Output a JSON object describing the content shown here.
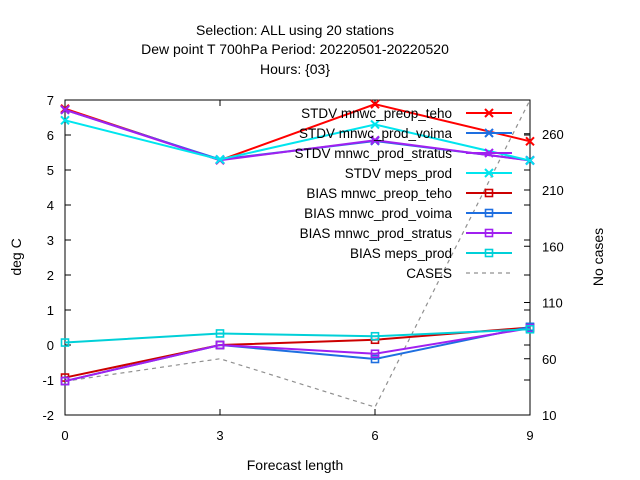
{
  "header": {
    "line1": "Selection: ALL using    20 stations",
    "line2": "Dew point T 700hPa   Period: 20220501-20220520",
    "line3": "Hours: {03}"
  },
  "chart_data": {
    "type": "line",
    "xlabel": "Forecast length",
    "ylabel": "deg C",
    "y2label": "No cases",
    "x": [
      0,
      3,
      6,
      9
    ],
    "xticks": [
      "0",
      "3",
      "6",
      "9"
    ],
    "xlim": [
      0,
      9
    ],
    "ylim": [
      -2,
      7
    ],
    "yticks": [
      "-2",
      "-1",
      "0",
      "1",
      "2",
      "3",
      "4",
      "5",
      "6",
      "7"
    ],
    "y2lim": [
      10,
      290
    ],
    "y2ticks": [
      "10",
      "60",
      "110",
      "160",
      "210",
      "260"
    ],
    "grid": false,
    "legend_position": "top-right",
    "series": [
      {
        "name": "STDV mnwc_preop_teho",
        "axis": "y",
        "color": "#ff0000",
        "marker": "x",
        "values": [
          6.75,
          5.28,
          6.88,
          5.82
        ]
      },
      {
        "name": "STDV mnwc_prod_voima",
        "axis": "y",
        "color": "#1e6fe0",
        "marker": "x",
        "values": [
          6.72,
          5.3,
          5.83,
          5.28
        ]
      },
      {
        "name": "STDV mnwc_prod_stratus",
        "axis": "y",
        "color": "#a020f0",
        "marker": "x",
        "values": [
          6.72,
          5.28,
          5.85,
          5.27
        ]
      },
      {
        "name": "STDV meps_prod",
        "axis": "y",
        "color": "#00e5ee",
        "marker": "x",
        "values": [
          6.42,
          5.3,
          6.3,
          5.27
        ]
      },
      {
        "name": "BIAS mnwc_preop_teho",
        "axis": "y",
        "color": "#cc0000",
        "marker": "square",
        "values": [
          -0.93,
          0.0,
          0.15,
          0.5
        ]
      },
      {
        "name": "BIAS mnwc_prod_voima",
        "axis": "y",
        "color": "#1e6fe0",
        "marker": "square",
        "values": [
          -1.03,
          0.0,
          -0.4,
          0.52
        ]
      },
      {
        "name": "BIAS mnwc_prod_stratus",
        "axis": "y",
        "color": "#a020f0",
        "marker": "square",
        "values": [
          -1.03,
          0.0,
          -0.25,
          0.48
        ]
      },
      {
        "name": "BIAS meps_prod",
        "axis": "y",
        "color": "#00d0d8",
        "marker": "square",
        "values": [
          0.07,
          0.33,
          0.25,
          0.45
        ]
      },
      {
        "name": "CASES",
        "axis": "y2",
        "color": "#909090",
        "marker": "none",
        "dashed": true,
        "values": [
          40,
          60,
          17,
          290
        ]
      }
    ]
  }
}
